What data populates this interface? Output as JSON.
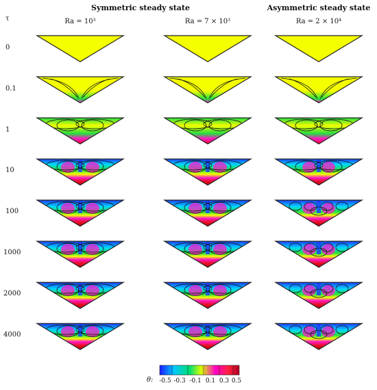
{
  "headers": {
    "symmetric": "Symmetric steady state",
    "asymmetric": "Asymmetric steady state"
  },
  "columns": [
    "Ra = 10³",
    "Ra = 7 × 10³",
    "Ra = 2 × 10⁴"
  ],
  "row_axis_label": "τ",
  "rows": [
    "0",
    "0.1",
    "1",
    "10",
    "100",
    "1000",
    "2000",
    "4000"
  ],
  "colorbar": {
    "label": "θ:",
    "ticks": [
      "-0.5",
      "-0.3",
      "-0.1",
      "0.1",
      "0.3",
      "0.5"
    ],
    "colors": [
      "#1a1aff",
      "#00c8ff",
      "#00e070",
      "#d8ff00",
      "#ff00c8",
      "#ff2040",
      "#b00020"
    ]
  },
  "palette": {
    "cold": "#1c3cff",
    "cyan": "#00d8ff",
    "green": "#22e040",
    "yellow": "#f4ff00",
    "magenta": "#ff18c8",
    "red": "#e81020",
    "dark_red": "#b00018"
  }
}
